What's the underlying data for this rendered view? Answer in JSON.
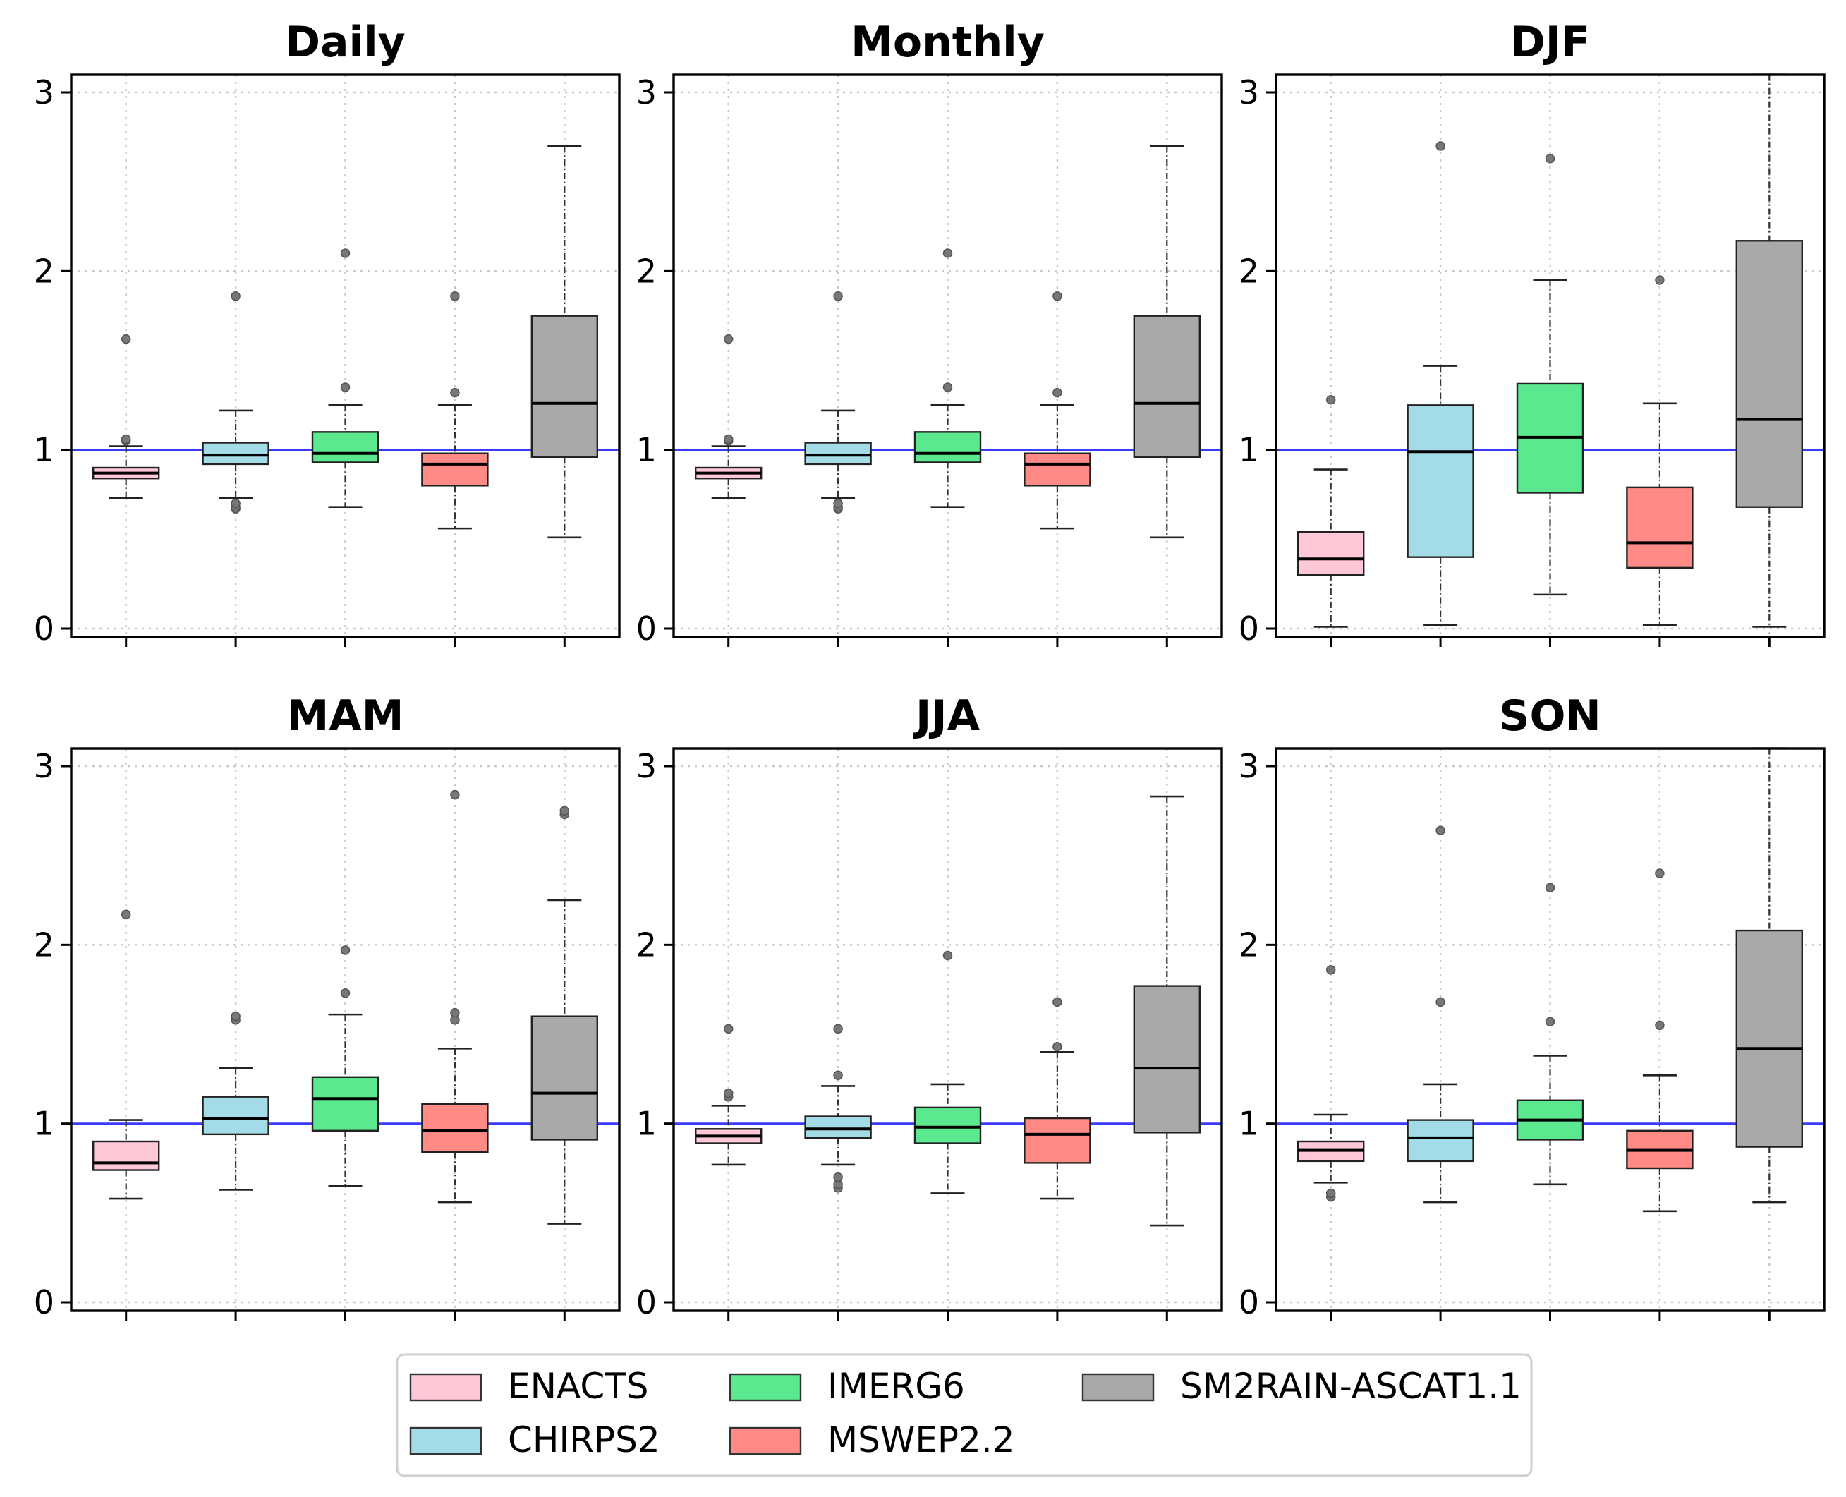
{
  "chart_data": [
    {
      "type": "box",
      "title": "Daily",
      "ylim": [
        0,
        3.1
      ],
      "yticks": [
        0,
        1,
        2,
        3
      ],
      "reference_line": 1,
      "grid": true,
      "boxes": [
        {
          "name": "ENACTS",
          "min": 0.73,
          "q1": 0.84,
          "median": 0.87,
          "q3": 0.9,
          "max": 1.02,
          "outliers": [
            1.05,
            1.06,
            1.62
          ]
        },
        {
          "name": "CHIRPS2",
          "min": 0.73,
          "q1": 0.92,
          "median": 0.97,
          "q3": 1.04,
          "max": 1.22,
          "outliers": [
            0.67,
            0.68,
            0.7,
            1.86
          ]
        },
        {
          "name": "IMERG6",
          "min": 0.68,
          "q1": 0.93,
          "median": 0.98,
          "q3": 1.1,
          "max": 1.25,
          "outliers": [
            1.35,
            2.1
          ]
        },
        {
          "name": "MSWEP2.2",
          "min": 0.56,
          "q1": 0.8,
          "median": 0.92,
          "q3": 0.98,
          "max": 1.25,
          "outliers": [
            1.32,
            1.86
          ]
        },
        {
          "name": "SM2RAIN-ASCAT1.1",
          "min": 0.51,
          "q1": 0.96,
          "median": 1.26,
          "q3": 1.75,
          "max": 2.7,
          "outliers": []
        }
      ]
    },
    {
      "type": "box",
      "title": "Monthly",
      "ylim": [
        0,
        3.1
      ],
      "yticks": [
        0,
        1,
        2,
        3
      ],
      "reference_line": 1,
      "grid": true,
      "boxes": [
        {
          "name": "ENACTS",
          "min": 0.73,
          "q1": 0.84,
          "median": 0.87,
          "q3": 0.9,
          "max": 1.02,
          "outliers": [
            1.05,
            1.06,
            1.62
          ]
        },
        {
          "name": "CHIRPS2",
          "min": 0.73,
          "q1": 0.92,
          "median": 0.97,
          "q3": 1.04,
          "max": 1.22,
          "outliers": [
            0.67,
            0.68,
            0.7,
            1.86
          ]
        },
        {
          "name": "IMERG6",
          "min": 0.68,
          "q1": 0.93,
          "median": 0.98,
          "q3": 1.1,
          "max": 1.25,
          "outliers": [
            1.35,
            2.1
          ]
        },
        {
          "name": "MSWEP2.2",
          "min": 0.56,
          "q1": 0.8,
          "median": 0.92,
          "q3": 0.98,
          "max": 1.25,
          "outliers": [
            1.32,
            1.86
          ]
        },
        {
          "name": "SM2RAIN-ASCAT1.1",
          "min": 0.51,
          "q1": 0.96,
          "median": 1.26,
          "q3": 1.75,
          "max": 2.7,
          "outliers": []
        }
      ]
    },
    {
      "type": "box",
      "title": "DJF",
      "ylim": [
        0,
        3.1
      ],
      "yticks": [
        0,
        1,
        2,
        3
      ],
      "reference_line": 1,
      "grid": true,
      "boxes": [
        {
          "name": "ENACTS",
          "min": 0.01,
          "q1": 0.3,
          "median": 0.39,
          "q3": 0.54,
          "max": 0.89,
          "outliers": [
            1.28
          ]
        },
        {
          "name": "CHIRPS2",
          "min": 0.02,
          "q1": 0.4,
          "median": 0.99,
          "q3": 1.25,
          "max": 1.47,
          "outliers": [
            2.7
          ]
        },
        {
          "name": "IMERG6",
          "min": 0.19,
          "q1": 0.76,
          "median": 1.07,
          "q3": 1.37,
          "max": 1.95,
          "outliers": [
            2.63
          ]
        },
        {
          "name": "MSWEP2.2",
          "min": 0.02,
          "q1": 0.34,
          "median": 0.48,
          "q3": 0.79,
          "max": 1.26,
          "outliers": [
            1.95
          ]
        },
        {
          "name": "SM2RAIN-ASCAT1.1",
          "min": 0.01,
          "q1": 0.68,
          "median": 1.17,
          "q3": 2.17,
          "max": 3.1,
          "outliers": []
        }
      ]
    },
    {
      "type": "box",
      "title": "MAM",
      "ylim": [
        0,
        3.1
      ],
      "yticks": [
        0,
        1,
        2,
        3
      ],
      "reference_line": 1,
      "grid": true,
      "boxes": [
        {
          "name": "ENACTS",
          "min": 0.58,
          "q1": 0.74,
          "median": 0.78,
          "q3": 0.9,
          "max": 1.02,
          "outliers": [
            2.17
          ]
        },
        {
          "name": "CHIRPS2",
          "min": 0.63,
          "q1": 0.94,
          "median": 1.03,
          "q3": 1.15,
          "max": 1.31,
          "outliers": [
            1.58,
            1.6
          ]
        },
        {
          "name": "IMERG6",
          "min": 0.65,
          "q1": 0.96,
          "median": 1.14,
          "q3": 1.26,
          "max": 1.61,
          "outliers": [
            1.73,
            1.97
          ]
        },
        {
          "name": "MSWEP2.2",
          "min": 0.56,
          "q1": 0.84,
          "median": 0.96,
          "q3": 1.11,
          "max": 1.42,
          "outliers": [
            1.58,
            1.62,
            2.84
          ]
        },
        {
          "name": "SM2RAIN-ASCAT1.1",
          "min": 0.44,
          "q1": 0.91,
          "median": 1.17,
          "q3": 1.6,
          "max": 2.25,
          "outliers": [
            2.73,
            2.75
          ]
        }
      ]
    },
    {
      "type": "box",
      "title": "JJA",
      "ylim": [
        0,
        3.1
      ],
      "yticks": [
        0,
        1,
        2,
        3
      ],
      "reference_line": 1,
      "grid": true,
      "boxes": [
        {
          "name": "ENACTS",
          "min": 0.77,
          "q1": 0.89,
          "median": 0.93,
          "q3": 0.97,
          "max": 1.1,
          "outliers": [
            1.15,
            1.17,
            1.53
          ]
        },
        {
          "name": "CHIRPS2",
          "min": 0.77,
          "q1": 0.92,
          "median": 0.97,
          "q3": 1.04,
          "max": 1.21,
          "outliers": [
            0.64,
            0.66,
            0.7,
            1.27,
            1.53
          ]
        },
        {
          "name": "IMERG6",
          "min": 0.61,
          "q1": 0.89,
          "median": 0.98,
          "q3": 1.09,
          "max": 1.22,
          "outliers": [
            1.94
          ]
        },
        {
          "name": "MSWEP2.2",
          "min": 0.58,
          "q1": 0.78,
          "median": 0.94,
          "q3": 1.03,
          "max": 1.4,
          "outliers": [
            1.43,
            1.68
          ]
        },
        {
          "name": "SM2RAIN-ASCAT1.1",
          "min": 0.43,
          "q1": 0.95,
          "median": 1.31,
          "q3": 1.77,
          "max": 2.83,
          "outliers": []
        }
      ]
    },
    {
      "type": "box",
      "title": "SON",
      "ylim": [
        0,
        3.1
      ],
      "yticks": [
        0,
        1,
        2,
        3
      ],
      "reference_line": 1,
      "grid": true,
      "boxes": [
        {
          "name": "ENACTS",
          "min": 0.67,
          "q1": 0.79,
          "median": 0.85,
          "q3": 0.9,
          "max": 1.05,
          "outliers": [
            0.59,
            0.61,
            1.86
          ]
        },
        {
          "name": "CHIRPS2",
          "min": 0.56,
          "q1": 0.79,
          "median": 0.92,
          "q3": 1.02,
          "max": 1.22,
          "outliers": [
            1.68,
            2.64
          ]
        },
        {
          "name": "IMERG6",
          "min": 0.66,
          "q1": 0.91,
          "median": 1.02,
          "q3": 1.13,
          "max": 1.38,
          "outliers": [
            1.57,
            2.32
          ]
        },
        {
          "name": "MSWEP2.2",
          "min": 0.51,
          "q1": 0.75,
          "median": 0.85,
          "q3": 0.96,
          "max": 1.27,
          "outliers": [
            1.55,
            2.4
          ]
        },
        {
          "name": "SM2RAIN-ASCAT1.1",
          "min": 0.56,
          "q1": 0.87,
          "median": 1.42,
          "q3": 2.08,
          "max": 3.1,
          "outliers": []
        }
      ]
    }
  ],
  "legend": {
    "placement": "bottom-center",
    "items": [
      {
        "label": "ENACTS",
        "color": "#ffc8d6"
      },
      {
        "label": "IMERG6",
        "color": "#5ce88e"
      },
      {
        "label": "SM2RAIN-ASCAT1.1",
        "color": "#a9a9a9"
      },
      {
        "label": "CHIRPS2",
        "color": "#a3dce6"
      },
      {
        "label": "MSWEP2.2",
        "color": "#ff8a86"
      }
    ]
  },
  "colors": {
    "ENACTS": "#ffc8d6",
    "CHIRPS2": "#a3dce6",
    "IMERG6": "#5ce88e",
    "MSWEP2.2": "#ff8a86",
    "SM2RAIN-ASCAT1.1": "#a9a9a9",
    "reference_line": "#3a3aff",
    "grid": "#c8c8c8"
  }
}
